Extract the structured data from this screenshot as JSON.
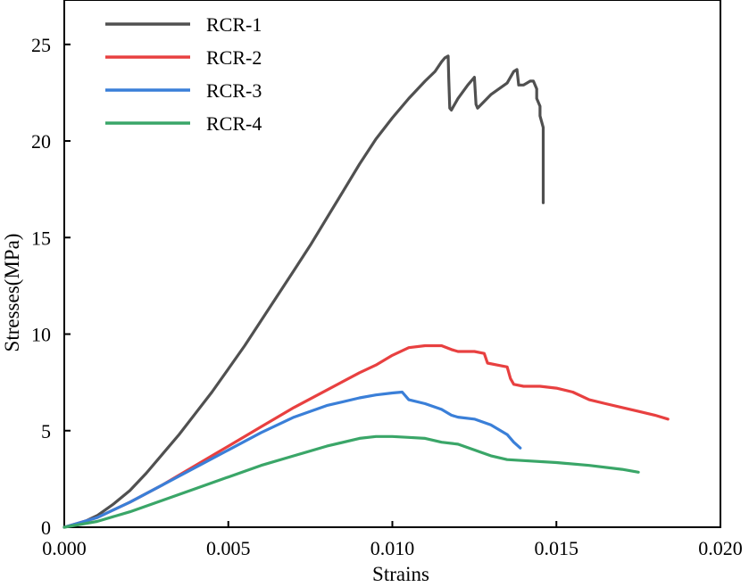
{
  "chart_data": {
    "type": "line",
    "xlabel": "Strains",
    "ylabel": "Stresses(MPa)",
    "xlim": [
      0,
      0.02
    ],
    "ylim": [
      0,
      27.3
    ],
    "x_ticks": [
      "0.000",
      "0.005",
      "0.010",
      "0.015",
      "0.020"
    ],
    "y_ticks": [
      "0",
      "5",
      "10",
      "15",
      "20",
      "25"
    ],
    "x_tick_values": [
      0,
      0.005,
      0.01,
      0.015,
      0.02
    ],
    "y_tick_values": [
      0,
      5,
      10,
      15,
      20,
      25
    ],
    "grid": false,
    "legend_position": "top-left",
    "series": [
      {
        "name": "RCR-1",
        "color": "#505050",
        "points": [
          [
            0,
            0
          ],
          [
            0.0005,
            0.2
          ],
          [
            0.001,
            0.6
          ],
          [
            0.0015,
            1.2
          ],
          [
            0.002,
            1.9
          ],
          [
            0.0025,
            2.8
          ],
          [
            0.003,
            3.8
          ],
          [
            0.0035,
            4.8
          ],
          [
            0.004,
            5.9
          ],
          [
            0.0045,
            7.0
          ],
          [
            0.005,
            8.2
          ],
          [
            0.0055,
            9.4
          ],
          [
            0.006,
            10.7
          ],
          [
            0.0065,
            12.0
          ],
          [
            0.007,
            13.3
          ],
          [
            0.0075,
            14.6
          ],
          [
            0.008,
            16.0
          ],
          [
            0.0085,
            17.4
          ],
          [
            0.009,
            18.8
          ],
          [
            0.0095,
            20.1
          ],
          [
            0.01,
            21.2
          ],
          [
            0.0105,
            22.2
          ],
          [
            0.011,
            23.1
          ],
          [
            0.0113,
            23.6
          ],
          [
            0.0115,
            24.1
          ],
          [
            0.0116,
            24.3
          ],
          [
            0.0117,
            24.4
          ],
          [
            0.01172,
            23.2
          ],
          [
            0.01175,
            21.7
          ],
          [
            0.0118,
            21.6
          ],
          [
            0.012,
            22.2
          ],
          [
            0.0123,
            22.9
          ],
          [
            0.0125,
            23.3
          ],
          [
            0.01255,
            21.9
          ],
          [
            0.0126,
            21.7
          ],
          [
            0.013,
            22.4
          ],
          [
            0.0135,
            23.0
          ],
          [
            0.0137,
            23.6
          ],
          [
            0.0138,
            23.7
          ],
          [
            0.01385,
            22.9
          ],
          [
            0.014,
            22.9
          ],
          [
            0.0141,
            23.0
          ],
          [
            0.0142,
            23.1
          ],
          [
            0.0143,
            23.1
          ],
          [
            0.0144,
            22.7
          ],
          [
            0.0144,
            22.2
          ],
          [
            0.0145,
            21.8
          ],
          [
            0.0145,
            21.3
          ],
          [
            0.0146,
            20.7
          ],
          [
            0.0146,
            20.2
          ],
          [
            0.0146,
            18.5
          ],
          [
            0.0146,
            16.8
          ]
        ]
      },
      {
        "name": "RCR-2",
        "color": "#e84040",
        "points": [
          [
            0,
            0
          ],
          [
            0.001,
            0.5
          ],
          [
            0.002,
            1.3
          ],
          [
            0.003,
            2.2
          ],
          [
            0.004,
            3.2
          ],
          [
            0.005,
            4.2
          ],
          [
            0.006,
            5.2
          ],
          [
            0.007,
            6.2
          ],
          [
            0.008,
            7.1
          ],
          [
            0.009,
            8.0
          ],
          [
            0.0095,
            8.4
          ],
          [
            0.01,
            8.9
          ],
          [
            0.0105,
            9.3
          ],
          [
            0.011,
            9.4
          ],
          [
            0.0115,
            9.4
          ],
          [
            0.0118,
            9.2
          ],
          [
            0.012,
            9.1
          ],
          [
            0.0125,
            9.1
          ],
          [
            0.0128,
            9.0
          ],
          [
            0.0129,
            8.5
          ],
          [
            0.0132,
            8.4
          ],
          [
            0.0135,
            8.3
          ],
          [
            0.0136,
            7.7
          ],
          [
            0.0137,
            7.4
          ],
          [
            0.014,
            7.3
          ],
          [
            0.0145,
            7.3
          ],
          [
            0.015,
            7.2
          ],
          [
            0.0155,
            7.0
          ],
          [
            0.016,
            6.6
          ],
          [
            0.0165,
            6.4
          ],
          [
            0.017,
            6.2
          ],
          [
            0.0175,
            6.0
          ],
          [
            0.018,
            5.8
          ],
          [
            0.0184,
            5.6
          ]
        ]
      },
      {
        "name": "RCR-3",
        "color": "#3a7fd8",
        "points": [
          [
            0,
            0
          ],
          [
            0.001,
            0.5
          ],
          [
            0.002,
            1.3
          ],
          [
            0.003,
            2.2
          ],
          [
            0.004,
            3.1
          ],
          [
            0.005,
            4.0
          ],
          [
            0.006,
            4.9
          ],
          [
            0.007,
            5.7
          ],
          [
            0.008,
            6.3
          ],
          [
            0.009,
            6.7
          ],
          [
            0.0095,
            6.85
          ],
          [
            0.01,
            6.95
          ],
          [
            0.0103,
            7.0
          ],
          [
            0.0105,
            6.6
          ],
          [
            0.011,
            6.4
          ],
          [
            0.0115,
            6.1
          ],
          [
            0.0118,
            5.8
          ],
          [
            0.012,
            5.7
          ],
          [
            0.0125,
            5.6
          ],
          [
            0.013,
            5.3
          ],
          [
            0.0135,
            4.8
          ],
          [
            0.0137,
            4.4
          ],
          [
            0.0139,
            4.1
          ]
        ]
      },
      {
        "name": "RCR-4",
        "color": "#3aa668",
        "points": [
          [
            0,
            0
          ],
          [
            0.001,
            0.3
          ],
          [
            0.002,
            0.8
          ],
          [
            0.003,
            1.4
          ],
          [
            0.004,
            2.0
          ],
          [
            0.005,
            2.6
          ],
          [
            0.006,
            3.2
          ],
          [
            0.007,
            3.7
          ],
          [
            0.008,
            4.2
          ],
          [
            0.009,
            4.6
          ],
          [
            0.0095,
            4.7
          ],
          [
            0.01,
            4.7
          ],
          [
            0.0105,
            4.65
          ],
          [
            0.011,
            4.6
          ],
          [
            0.0115,
            4.4
          ],
          [
            0.012,
            4.3
          ],
          [
            0.0125,
            4.0
          ],
          [
            0.013,
            3.7
          ],
          [
            0.0135,
            3.5
          ],
          [
            0.014,
            3.45
          ],
          [
            0.015,
            3.35
          ],
          [
            0.016,
            3.2
          ],
          [
            0.017,
            3.0
          ],
          [
            0.0175,
            2.85
          ]
        ]
      }
    ]
  }
}
